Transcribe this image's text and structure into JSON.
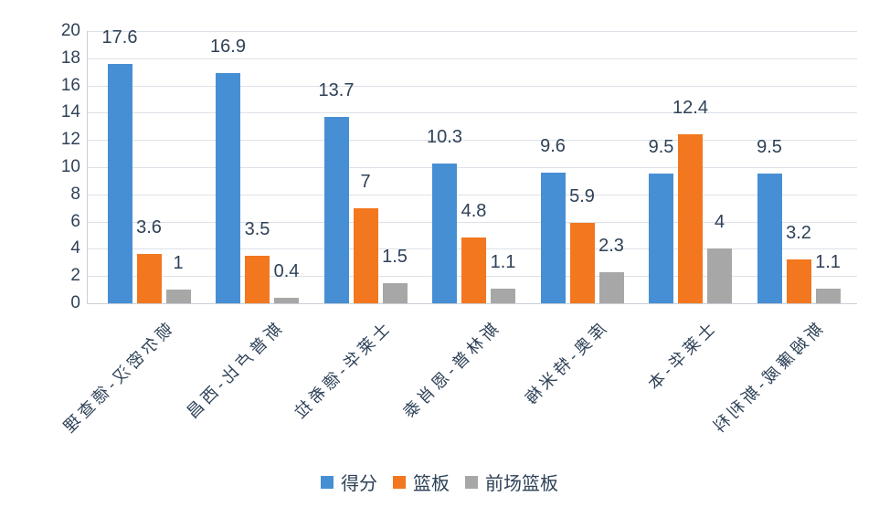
{
  "chart_data": {
    "type": "bar",
    "title": "",
    "xlabel": "",
    "ylabel": "",
    "categories": [
      "理查德-汉密尔顿",
      "昌西-比卢普斯",
      "拉希德-华莱士",
      "泰肖恩-普林斯",
      "梅米特-奥库",
      "本-华莱士",
      "科利斯-威廉姆斯"
    ],
    "series": [
      {
        "name": "得分",
        "color": "#478FD4",
        "values": [
          17.6,
          16.9,
          13.7,
          10.3,
          9.6,
          9.5,
          9.5
        ],
        "labels": [
          "17.6",
          "16.9",
          "13.7",
          "10.3",
          "9.6",
          "9.5",
          "9.5"
        ]
      },
      {
        "name": "篮板",
        "color": "#F3771E",
        "values": [
          3.6,
          3.5,
          7,
          4.8,
          5.9,
          12.4,
          3.2
        ],
        "labels": [
          "3.6",
          "3.5",
          "7",
          "4.8",
          "5.9",
          "12.4",
          "3.2"
        ]
      },
      {
        "name": "前场篮板",
        "color": "#A7A7A7",
        "values": [
          1,
          0.4,
          1.5,
          1.1,
          2.3,
          4,
          1.1
        ],
        "labels": [
          "1",
          "0.4",
          "1.5",
          "1.1",
          "2.3",
          "4",
          "1.1"
        ]
      }
    ],
    "ylim": [
      0,
      20
    ],
    "yticks": [
      0,
      2,
      4,
      6,
      8,
      10,
      12,
      14,
      16,
      18,
      20
    ],
    "grid": true,
    "legend_position": "bottom",
    "legend": [
      "得分",
      "篮板",
      "前场篮板"
    ]
  },
  "style": {
    "text_color": "#2E4157",
    "gridline_color": "#DDE2E8",
    "axis_line_color": "#C9CFD7",
    "background": "#FFFFFF"
  }
}
